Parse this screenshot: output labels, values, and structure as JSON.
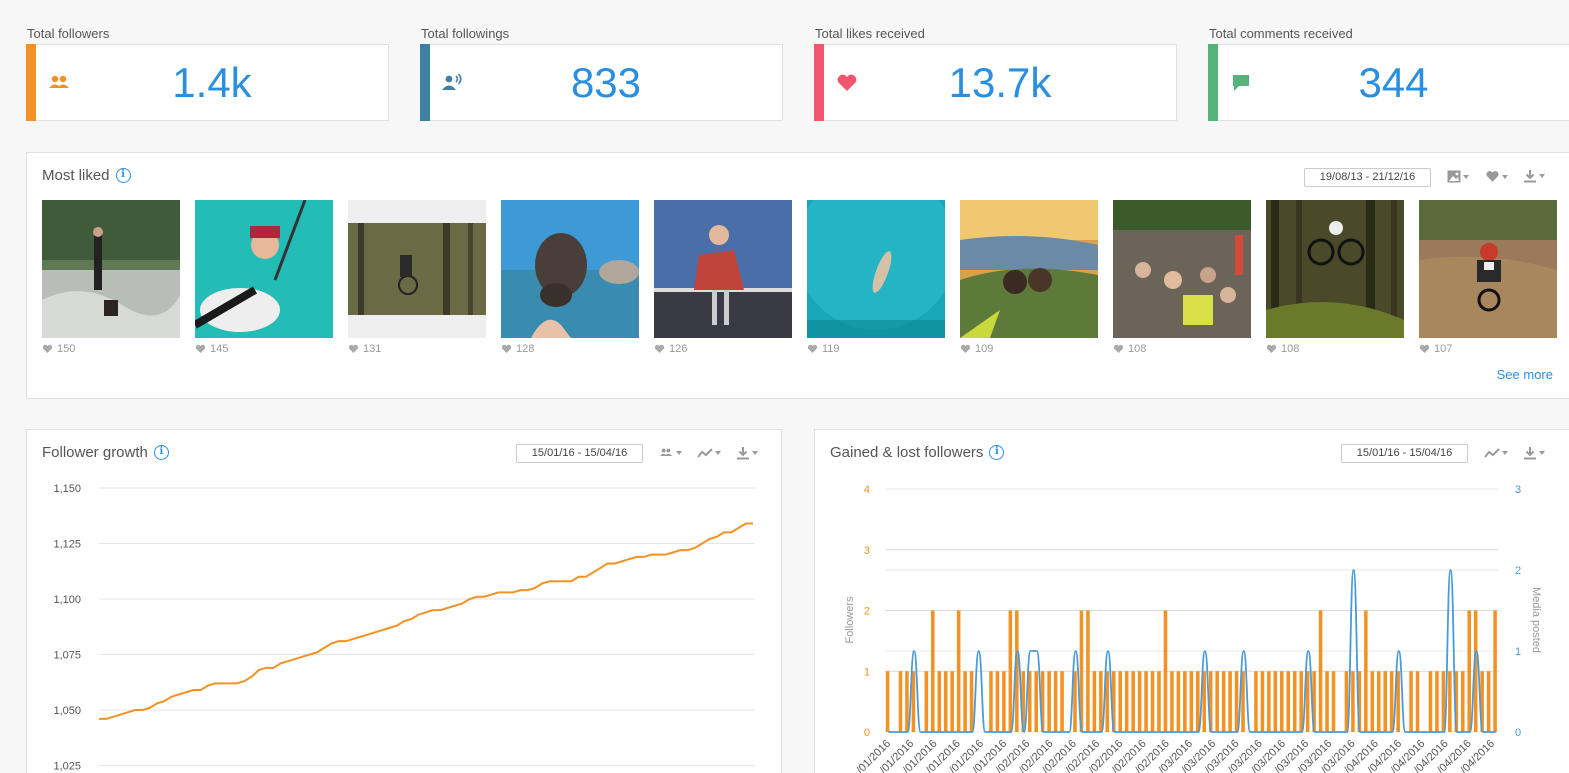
{
  "stats": [
    {
      "label": "Total followers",
      "value": "1.4k",
      "icon": "followers-icon",
      "color": "#f39224"
    },
    {
      "label": "Total followings",
      "value": "833",
      "icon": "followings-icon",
      "color": "#3f7fa4"
    },
    {
      "label": "Total likes received",
      "value": "13.7k",
      "icon": "heart-icon",
      "color": "#f0566e"
    },
    {
      "label": "Total comments received",
      "value": "344",
      "icon": "comment-icon",
      "color": "#56b47a"
    }
  ],
  "most_liked": {
    "title": "Most liked",
    "date_range": "19/08/13 - 21/12/16",
    "see_more": "See more",
    "posts": [
      {
        "likes": "150"
      },
      {
        "likes": "145"
      },
      {
        "likes": "131"
      },
      {
        "likes": "128"
      },
      {
        "likes": "126"
      },
      {
        "likes": "119"
      },
      {
        "likes": "109"
      },
      {
        "likes": "108"
      },
      {
        "likes": "108"
      },
      {
        "likes": "107"
      }
    ]
  },
  "follower_growth": {
    "title": "Follower growth",
    "date_range": "15/01/16 - 15/04/16"
  },
  "gained_lost": {
    "title": "Gained & lost followers",
    "date_range": "15/01/16 - 15/04/16"
  },
  "chart_data": [
    {
      "type": "line",
      "title": "Follower growth",
      "y_ticks": [
        "1,150",
        "1,125",
        "1,100",
        "1,075",
        "1,050",
        "1,025"
      ],
      "ylim": [
        1025,
        1150
      ],
      "color": "#f39224",
      "values": [
        1046,
        1046,
        1047,
        1048,
        1049,
        1050,
        1050,
        1051,
        1053,
        1054,
        1056,
        1057,
        1058,
        1059,
        1059,
        1061,
        1062,
        1062,
        1062,
        1062,
        1063,
        1065,
        1068,
        1069,
        1069,
        1071,
        1072,
        1073,
        1074,
        1075,
        1076,
        1078,
        1080,
        1081,
        1081,
        1082,
        1083,
        1084,
        1085,
        1086,
        1087,
        1088,
        1090,
        1091,
        1093,
        1094,
        1095,
        1095,
        1096,
        1097,
        1098,
        1100,
        1101,
        1101,
        1102,
        1103,
        1103,
        1103,
        1104,
        1104,
        1105,
        1107,
        1108,
        1108,
        1108,
        1108,
        1110,
        1110,
        1112,
        1114,
        1116,
        1116,
        1117,
        1118,
        1119,
        1119,
        1120,
        1120,
        1120,
        1121,
        1122,
        1122,
        1123,
        1125,
        1127,
        1128,
        1130,
        1130,
        1132,
        1134,
        1134
      ]
    },
    {
      "type": "bar",
      "title": "Gained & lost followers",
      "ylabel": "Followers",
      "y2label": "Media posted",
      "y_ticks": [
        "4",
        "3",
        "2",
        "1",
        "0"
      ],
      "y2_ticks": [
        "3",
        "2",
        "1",
        "0"
      ],
      "ylim": [
        0,
        4
      ],
      "y2lim": [
        0,
        3
      ],
      "series": [
        {
          "name": "Followers",
          "color": "#f39224",
          "values": [
            1,
            0,
            1,
            1,
            1,
            0,
            1,
            2,
            1,
            1,
            1,
            2,
            1,
            1,
            0,
            0,
            1,
            1,
            1,
            2,
            2,
            1,
            1,
            1,
            1,
            1,
            1,
            1,
            0,
            1,
            2,
            2,
            1,
            1,
            1,
            1,
            1,
            1,
            1,
            1,
            1,
            1,
            1,
            2,
            1,
            1,
            1,
            1,
            1,
            1,
            1,
            1,
            1,
            1,
            1,
            1,
            0,
            1,
            1,
            1,
            1,
            1,
            1,
            1,
            1,
            1,
            1,
            2,
            1,
            1,
            0,
            1,
            1,
            1,
            2,
            1,
            1,
            1,
            1,
            1,
            0,
            1,
            1,
            0,
            1,
            1,
            1,
            1,
            1,
            1,
            2,
            2,
            1,
            1,
            2
          ]
        },
        {
          "name": "Media posted",
          "color": "#4a9ad9",
          "values": [
            0,
            0,
            0,
            0,
            1,
            0,
            0,
            0,
            0,
            0,
            0,
            0,
            0,
            0,
            1,
            0,
            0,
            0,
            0,
            0,
            1,
            0,
            1,
            1,
            0,
            0,
            0,
            0,
            0,
            1,
            0,
            0,
            0,
            0,
            1,
            0,
            0,
            0,
            0,
            0,
            0,
            0,
            0,
            0,
            0,
            0,
            0,
            0,
            0,
            1,
            0,
            0,
            0,
            0,
            0,
            1,
            0,
            0,
            0,
            0,
            0,
            0,
            0,
            0,
            0,
            1,
            0,
            0,
            0,
            0,
            0,
            0,
            2,
            0,
            0,
            0,
            0,
            0,
            0,
            1,
            0,
            0,
            0,
            0,
            0,
            0,
            0,
            2,
            0,
            0,
            0,
            1,
            0,
            0,
            0
          ]
        }
      ],
      "x_labels": [
        "/01/2016",
        "/01/2016",
        "/01/2016",
        "/01/2016",
        "/01/2016",
        "/01/2016",
        "/02/2016",
        "/02/2016",
        "/02/2016",
        "/02/2016",
        "/02/2016",
        "/02/2016",
        "/02/2016",
        "/03/2016",
        "/03/2016",
        "/03/2016",
        "/03/2016",
        "/03/2016",
        "/03/2016",
        "/03/2016",
        "/03/2016",
        "/04/2016",
        "/04/2016",
        "/04/2016",
        "/04/2016",
        "/04/2016",
        "/04/2016"
      ]
    }
  ]
}
